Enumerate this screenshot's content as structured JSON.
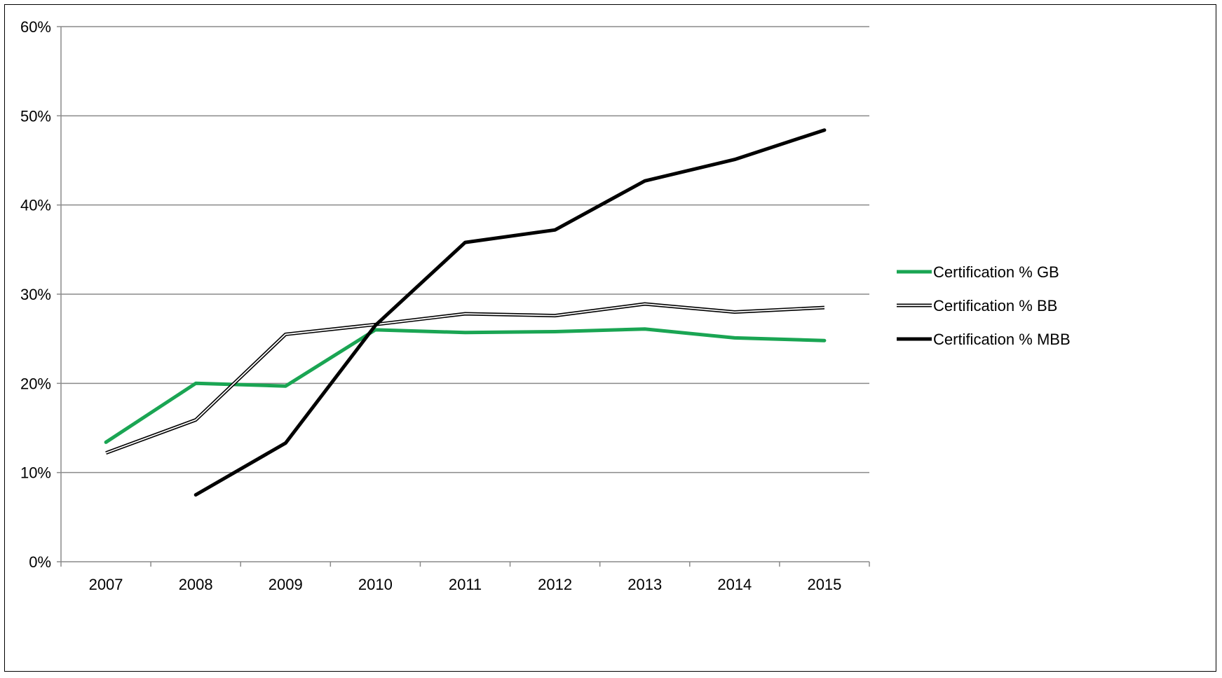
{
  "chart_data": {
    "type": "line",
    "title": "",
    "xlabel": "",
    "ylabel": "",
    "categories": [
      "2007",
      "2008",
      "2009",
      "2010",
      "2011",
      "2012",
      "2013",
      "2014",
      "2015"
    ],
    "ylim": [
      0,
      60
    ],
    "yticks": [
      0,
      10,
      20,
      30,
      40,
      50,
      60
    ],
    "ytick_labels": [
      "0%",
      "10%",
      "20%",
      "30%",
      "40%",
      "50%",
      "60%"
    ],
    "grid": true,
    "legend_position": "right",
    "series": [
      {
        "name": "Certification % GB",
        "color": "#1aa553",
        "style": "solid-thick",
        "values": [
          13.4,
          20.0,
          19.7,
          26.0,
          25.7,
          25.8,
          26.1,
          25.1,
          24.8
        ]
      },
      {
        "name": "Certification % BB",
        "color": "#000000",
        "style": "double",
        "values": [
          12.2,
          15.9,
          25.5,
          26.6,
          27.8,
          27.6,
          28.9,
          28.0,
          28.5
        ]
      },
      {
        "name": "Certification % MBB",
        "color": "#000000",
        "style": "solid-thick",
        "values": [
          null,
          7.5,
          13.3,
          26.5,
          35.8,
          37.2,
          42.7,
          45.1,
          48.4
        ]
      }
    ]
  }
}
